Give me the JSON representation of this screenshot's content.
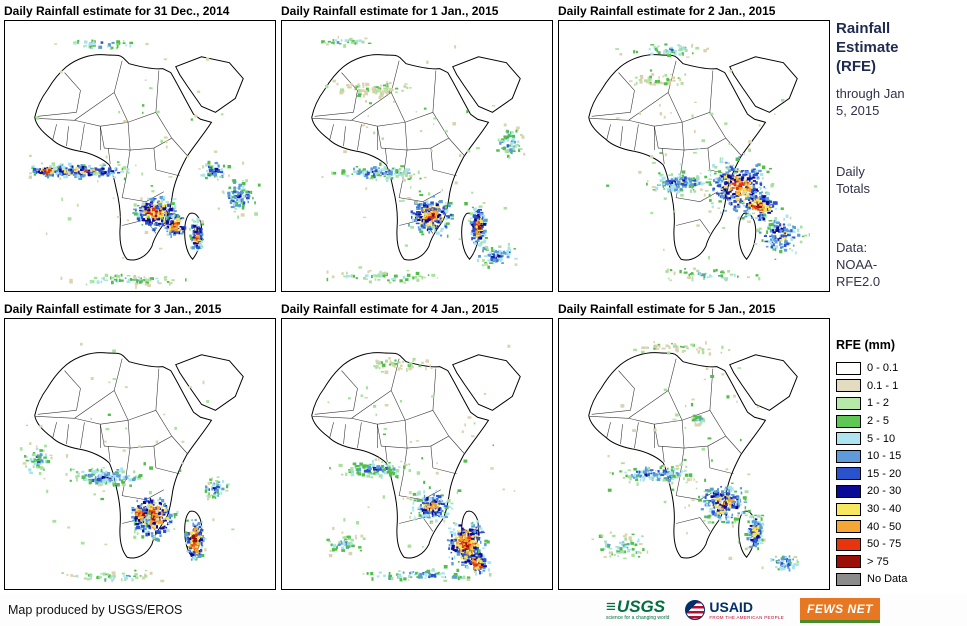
{
  "panels": [
    {
      "title": "Daily Rainfall estimate for 31 Dec., 2014"
    },
    {
      "title": "Daily Rainfall estimate for 1 Jan., 2015"
    },
    {
      "title": "Daily Rainfall estimate for 2 Jan., 2015"
    },
    {
      "title": "Daily Rainfall estimate for 3 Jan., 2015"
    },
    {
      "title": "Daily Rainfall estimate for 4 Jan., 2015"
    },
    {
      "title": "Daily Rainfall estimate for 5 Jan., 2015"
    }
  ],
  "sidebar": {
    "title": "Rainfall Estimate (RFE)",
    "subtitle": "through Jan 5, 2015",
    "totals": "Daily Totals",
    "data_source": "Data: NOAA-RFE2.0",
    "legend_title": "RFE (mm)",
    "legend": [
      {
        "label": "0 - 0.1",
        "color": "#FFFFFF"
      },
      {
        "label": "0.1 - 1",
        "color": "#E3DCC0"
      },
      {
        "label": "1 - 2",
        "color": "#B7E9A8"
      },
      {
        "label": "2 - 5",
        "color": "#5FC854"
      },
      {
        "label": "5 - 10",
        "color": "#AEE3F0"
      },
      {
        "label": "10 - 15",
        "color": "#5E9BDC"
      },
      {
        "label": "15 - 20",
        "color": "#2A52CC"
      },
      {
        "label": "20 - 30",
        "color": "#0A0A96"
      },
      {
        "label": "30 - 40",
        "color": "#F7E860"
      },
      {
        "label": "40 - 50",
        "color": "#F5A733"
      },
      {
        "label": "50 - 75",
        "color": "#E8350E"
      },
      {
        "label": "> 75",
        "color": "#9C0F06"
      },
      {
        "label": "No Data",
        "color": "#8C8C8C"
      }
    ]
  },
  "footer": {
    "credit": "Map produced by USGS/EROS",
    "logos": {
      "usgs": {
        "label": "USGS",
        "tagline": "science for a changing world"
      },
      "usaid": {
        "label": "USAID",
        "tagline": "FROM THE AMERICAN PEOPLE"
      },
      "fewsnet": {
        "label": "FEWS NET"
      }
    }
  }
}
